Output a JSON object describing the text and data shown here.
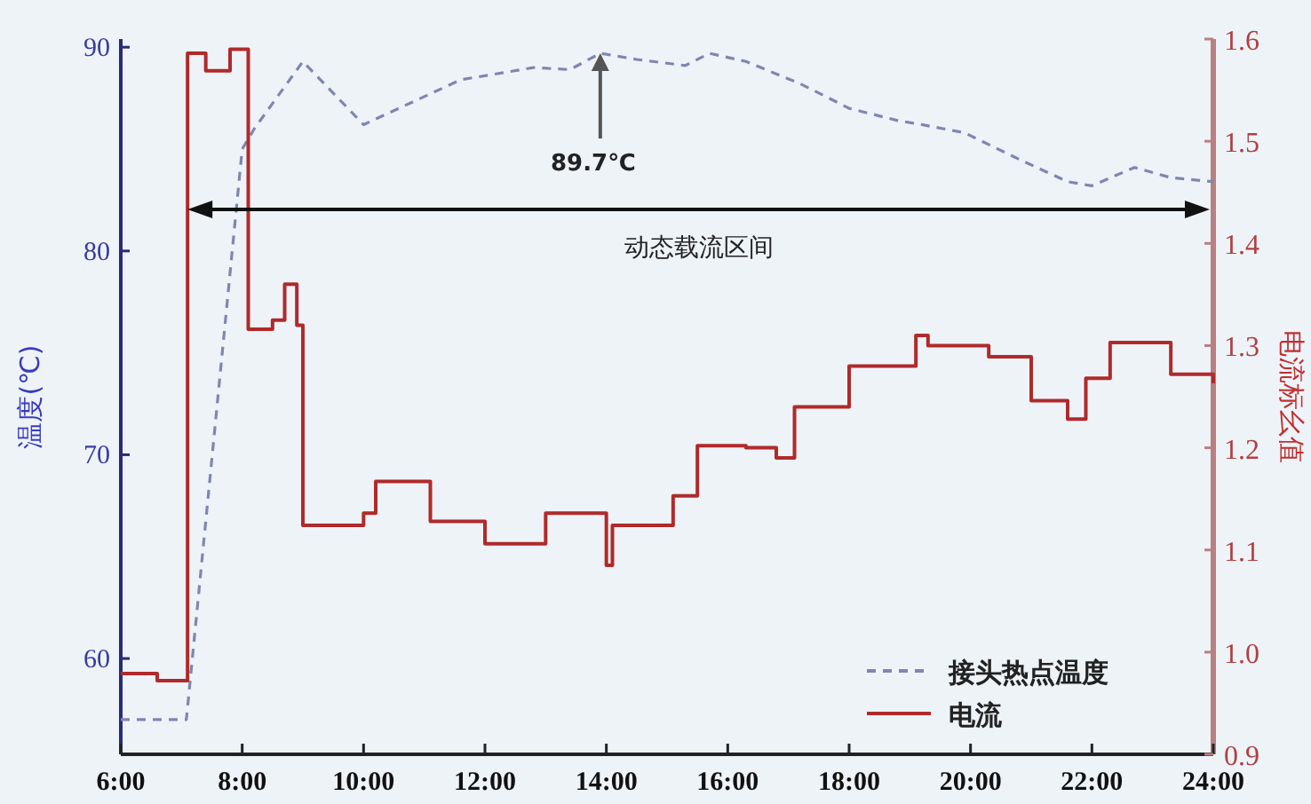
{
  "chart_data": {
    "type": "line",
    "ylabel": "温度(℃)",
    "y2label": "电流标幺值",
    "xlim": [
      6,
      24
    ],
    "xticks": [
      {
        "value": 6,
        "label": "6:00"
      },
      {
        "value": 8,
        "label": "8:00"
      },
      {
        "value": 10,
        "label": "10:00"
      },
      {
        "value": 12,
        "label": "12:00"
      },
      {
        "value": 14,
        "label": "14:00"
      },
      {
        "value": 16,
        "label": "16:00"
      },
      {
        "value": 18,
        "label": "18:00"
      },
      {
        "value": 20,
        "label": "20:00"
      },
      {
        "value": 22,
        "label": "22:00"
      },
      {
        "value": 24,
        "label": "24:00"
      }
    ],
    "ylim": [
      55.3,
      90.4
    ],
    "yticks": [
      60,
      70,
      80,
      90
    ],
    "y2lim": [
      0.9,
      1.6
    ],
    "y2ticks": [
      0.9,
      {
        "value": 1,
        "label": "1.0"
      },
      1.1,
      1.2,
      1.3,
      1.4,
      1.5,
      1.6
    ],
    "legend": "bottom right",
    "marker": "none",
    "series": [
      {
        "name": "接头热点温度",
        "type": "line",
        "line_style": "dashed",
        "color": "#7f86b0",
        "x": [
          6,
          7.08,
          8.0,
          8.2,
          9.0,
          10.0,
          11.6,
          12.8,
          13.4,
          13.9,
          14.5,
          15.3,
          15.7,
          16.3,
          17.2,
          18.0,
          18.8,
          19.2,
          19.9,
          20.8,
          21.6,
          22.0,
          22.7,
          23.3,
          24
        ],
        "values": [
          57.0,
          57.0,
          85.0,
          86.0,
          89.3,
          86.2,
          88.4,
          89.0,
          88.9,
          89.7,
          89.4,
          89.1,
          89.7,
          89.3,
          88.2,
          87.0,
          86.4,
          86.2,
          85.8,
          84.5,
          83.4,
          83.2,
          84.1,
          83.6,
          83.4
        ]
      },
      {
        "name": "电流",
        "type": "step",
        "axis": "y2",
        "line_style": "solid",
        "color": "#b02a2a",
        "x": [
          6.0,
          6.6,
          7.1,
          7.4,
          7.8,
          8.1,
          8.5,
          8.7,
          8.9,
          9.0,
          10.0,
          10.2,
          11.1,
          12.0,
          13.0,
          14.0,
          14.1,
          15.1,
          15.5,
          16.3,
          16.8,
          17.1,
          18.0,
          19.1,
          19.3,
          20.3,
          21.0,
          21.6,
          21.9,
          22.3,
          23.3,
          24.0
        ],
        "values": [
          0.979,
          0.972,
          1.586,
          1.569,
          1.59,
          1.316,
          1.325,
          1.36,
          1.32,
          1.124,
          1.136,
          1.167,
          1.128,
          1.106,
          1.136,
          1.085,
          1.124,
          1.153,
          1.202,
          1.2,
          1.19,
          1.24,
          1.28,
          1.31,
          1.3,
          1.289,
          1.246,
          1.228,
          1.268,
          1.303,
          1.272,
          1.263
        ]
      }
    ],
    "annotations": [
      {
        "text": "89.7℃",
        "x": 13.9,
        "y": 89.7
      },
      "动态载流区间"
    ]
  }
}
